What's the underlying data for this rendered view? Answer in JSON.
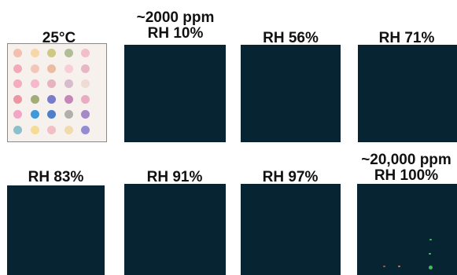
{
  "panels": [
    {
      "label_line1": "",
      "label_line2": "25°C"
    },
    {
      "label_line1": "~2000 ppm",
      "label_line2": "RH 10%"
    },
    {
      "label_line1": "",
      "label_line2": "RH 56%"
    },
    {
      "label_line1": "",
      "label_line2": "RH 71%"
    },
    {
      "label_line1": "",
      "label_line2": "RH 83%"
    },
    {
      "label_line1": "",
      "label_line2": "RH 91%"
    },
    {
      "label_line1": "",
      "label_line2": "RH 97%"
    },
    {
      "label_line1": "~20,000 ppm",
      "label_line2": "RH 100%"
    }
  ],
  "colors": {
    "dark_panel": "#062432",
    "reference_background": "#f6f1ec"
  },
  "dot_colors": [
    [
      "#f3b9a8",
      "#f7d3a0",
      "#c9c47a",
      "#a9b88e",
      "#f2b8c8"
    ],
    [
      "#f1a3b3",
      "#f3c1b5",
      "#e9b79b",
      "#f7c9d6",
      "#e7b0c1"
    ],
    [
      "#f5a4bd",
      "#f7b0c9",
      "#e3aeb9",
      "#d3b6c9",
      "#f0d8d2"
    ],
    [
      "#ee8a9a",
      "#9aa467",
      "#6b6fc7",
      "#c07ab2",
      "#e9a4bf"
    ],
    [
      "#f29cc2",
      "#2c8fd8",
      "#3d72c8",
      "#a9a9a3",
      "#9d7cc2"
    ],
    [
      "#7fb9c9",
      "#f5d88a",
      "#f2b9c2",
      "#f1d7a6",
      "#8b7fd0"
    ]
  ]
}
